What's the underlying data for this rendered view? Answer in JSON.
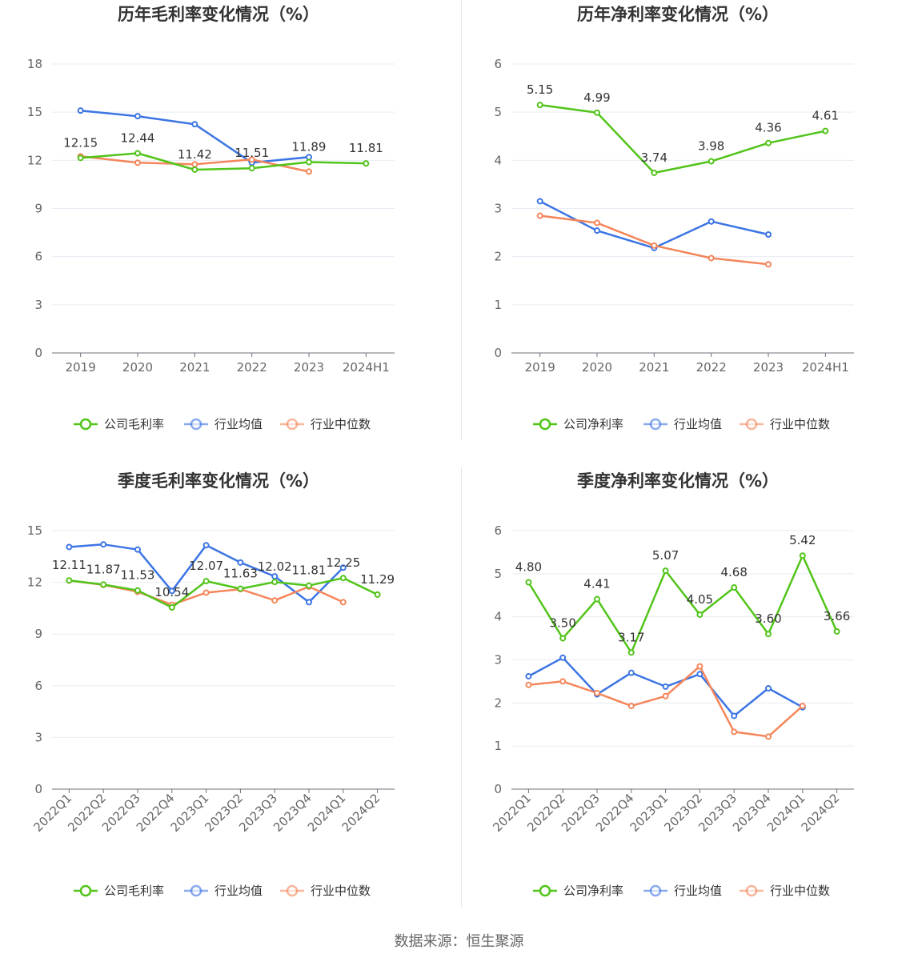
{
  "colors": {
    "company": "#52c41a",
    "industry_avg": "#3d75e4",
    "industry_median": "#f4865b"
  },
  "footer": "数据来源：恒生聚源",
  "chart_data": [
    {
      "type": "line",
      "title": "历年毛利率变化情况（%）",
      "categories": [
        "2019",
        "2020",
        "2021",
        "2022",
        "2023",
        "2024H1"
      ],
      "ylim": [
        0,
        18
      ],
      "yticks": [
        0,
        3,
        6,
        9,
        12,
        15,
        18
      ],
      "grid": true,
      "legend_position": "bottom",
      "rotate_x": false,
      "series": [
        {
          "name": "公司毛利率",
          "color": "#52c41a",
          "values": [
            12.15,
            12.44,
            11.42,
            11.51,
            11.89,
            11.81
          ],
          "labels": [
            "12.15",
            "12.44",
            "11.42",
            "11.51",
            "11.89",
            "11.81"
          ]
        },
        {
          "name": "行业均值",
          "color": "#3d75e4",
          "values": [
            15.1,
            14.75,
            14.25,
            11.85,
            12.2,
            null
          ]
        },
        {
          "name": "行业中位数",
          "color": "#f4865b",
          "values": [
            12.25,
            11.85,
            11.75,
            12.05,
            11.3,
            null
          ]
        }
      ]
    },
    {
      "type": "line",
      "title": "历年净利率变化情况（%）",
      "categories": [
        "2019",
        "2020",
        "2021",
        "2022",
        "2023",
        "2024H1"
      ],
      "ylim": [
        0,
        6
      ],
      "yticks": [
        0,
        1,
        2,
        3,
        4,
        5,
        6
      ],
      "grid": true,
      "legend_position": "bottom",
      "rotate_x": false,
      "series": [
        {
          "name": "公司净利率",
          "color": "#52c41a",
          "values": [
            5.15,
            4.99,
            3.74,
            3.98,
            4.36,
            4.61
          ],
          "labels": [
            "5.15",
            "4.99",
            "3.74",
            "3.98",
            "4.36",
            "4.61"
          ]
        },
        {
          "name": "行业均值",
          "color": "#3d75e4",
          "values": [
            3.15,
            2.54,
            2.18,
            2.73,
            2.46,
            null
          ]
        },
        {
          "name": "行业中位数",
          "color": "#f4865b",
          "values": [
            2.85,
            2.7,
            2.23,
            1.97,
            1.84,
            null
          ]
        }
      ]
    },
    {
      "type": "line",
      "title": "季度毛利率变化情况（%）",
      "categories": [
        "2022Q1",
        "2022Q2",
        "2022Q3",
        "2022Q4",
        "2023Q1",
        "2023Q2",
        "2023Q3",
        "2023Q4",
        "2024Q1",
        "2024Q2"
      ],
      "ylim": [
        0,
        15
      ],
      "yticks": [
        0,
        3,
        6,
        9,
        12,
        15
      ],
      "grid": true,
      "legend_position": "bottom",
      "rotate_x": true,
      "series": [
        {
          "name": "公司毛利率",
          "color": "#52c41a",
          "values": [
            12.11,
            11.87,
            11.53,
            10.54,
            12.07,
            11.63,
            12.02,
            11.81,
            12.25,
            11.29
          ],
          "labels": [
            "12.11",
            "11.87",
            "11.53",
            "10.54",
            "12.07",
            "11.63",
            "12.02",
            "11.81",
            "12.25",
            "11.29"
          ]
        },
        {
          "name": "行业均值",
          "color": "#3d75e4",
          "values": [
            14.05,
            14.2,
            13.9,
            11.5,
            14.15,
            13.15,
            12.35,
            10.85,
            12.85,
            null
          ]
        },
        {
          "name": "行业中位数",
          "color": "#f4865b",
          "values": [
            12.1,
            11.85,
            11.45,
            10.7,
            11.4,
            11.6,
            10.95,
            11.75,
            10.85,
            null
          ]
        }
      ]
    },
    {
      "type": "line",
      "title": "季度净利率变化情况（%）",
      "categories": [
        "2022Q1",
        "2022Q2",
        "2022Q3",
        "2022Q4",
        "2023Q1",
        "2023Q2",
        "2023Q3",
        "2023Q4",
        "2024Q1",
        "2024Q2"
      ],
      "ylim": [
        0,
        6
      ],
      "yticks": [
        0,
        1,
        2,
        3,
        4,
        5,
        6
      ],
      "grid": true,
      "legend_position": "bottom",
      "rotate_x": true,
      "series": [
        {
          "name": "公司净利率",
          "color": "#52c41a",
          "values": [
            4.8,
            3.5,
            4.41,
            3.17,
            5.07,
            4.05,
            4.68,
            3.6,
            5.42,
            3.66
          ],
          "labels": [
            "4.80",
            "3.50",
            "4.41",
            "3.17",
            "5.07",
            "4.05",
            "4.68",
            "3.60",
            "5.42",
            "3.66"
          ]
        },
        {
          "name": "行业均值",
          "color": "#3d75e4",
          "values": [
            2.62,
            3.05,
            2.2,
            2.7,
            2.38,
            2.67,
            1.7,
            2.34,
            1.9,
            null
          ]
        },
        {
          "name": "行业中位数",
          "color": "#f4865b",
          "values": [
            2.42,
            2.5,
            2.23,
            1.93,
            2.16,
            2.85,
            1.33,
            1.22,
            1.93,
            null
          ]
        }
      ]
    }
  ]
}
